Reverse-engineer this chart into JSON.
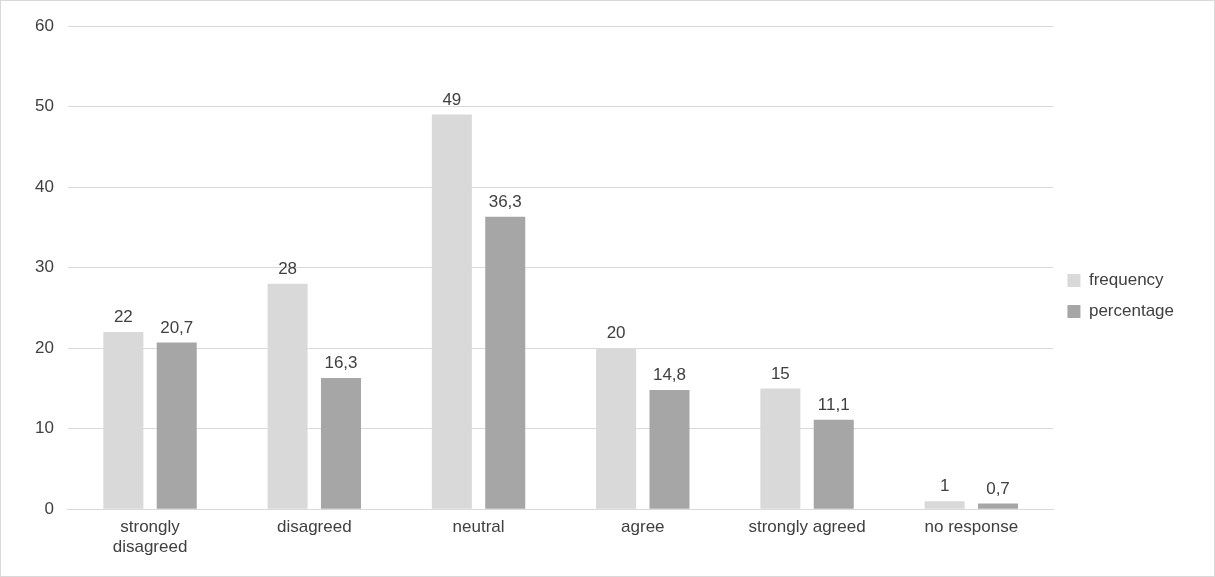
{
  "chart_data": {
    "type": "bar",
    "categories": [
      "strongly disagreed",
      "disagreed",
      "neutral",
      "agree",
      "strongly agreed",
      "no response"
    ],
    "series": [
      {
        "name": "frequency",
        "color": "#d9d9d9",
        "values": [
          22,
          28,
          49,
          20,
          15,
          1
        ],
        "value_labels": [
          "22",
          "28",
          "49",
          "20",
          "15",
          "1"
        ]
      },
      {
        "name": "percentage",
        "color": "#a6a6a6",
        "values": [
          20.7,
          16.3,
          36.3,
          14.8,
          11.1,
          0.7
        ],
        "value_labels": [
          "20,7",
          "16,3",
          "36,3",
          "14,8",
          "11,1",
          "0,7"
        ]
      }
    ],
    "ylim": [
      0,
      60
    ],
    "yticks": [
      0,
      10,
      20,
      30,
      40,
      50,
      60
    ],
    "grid": "y",
    "legend": "right"
  }
}
